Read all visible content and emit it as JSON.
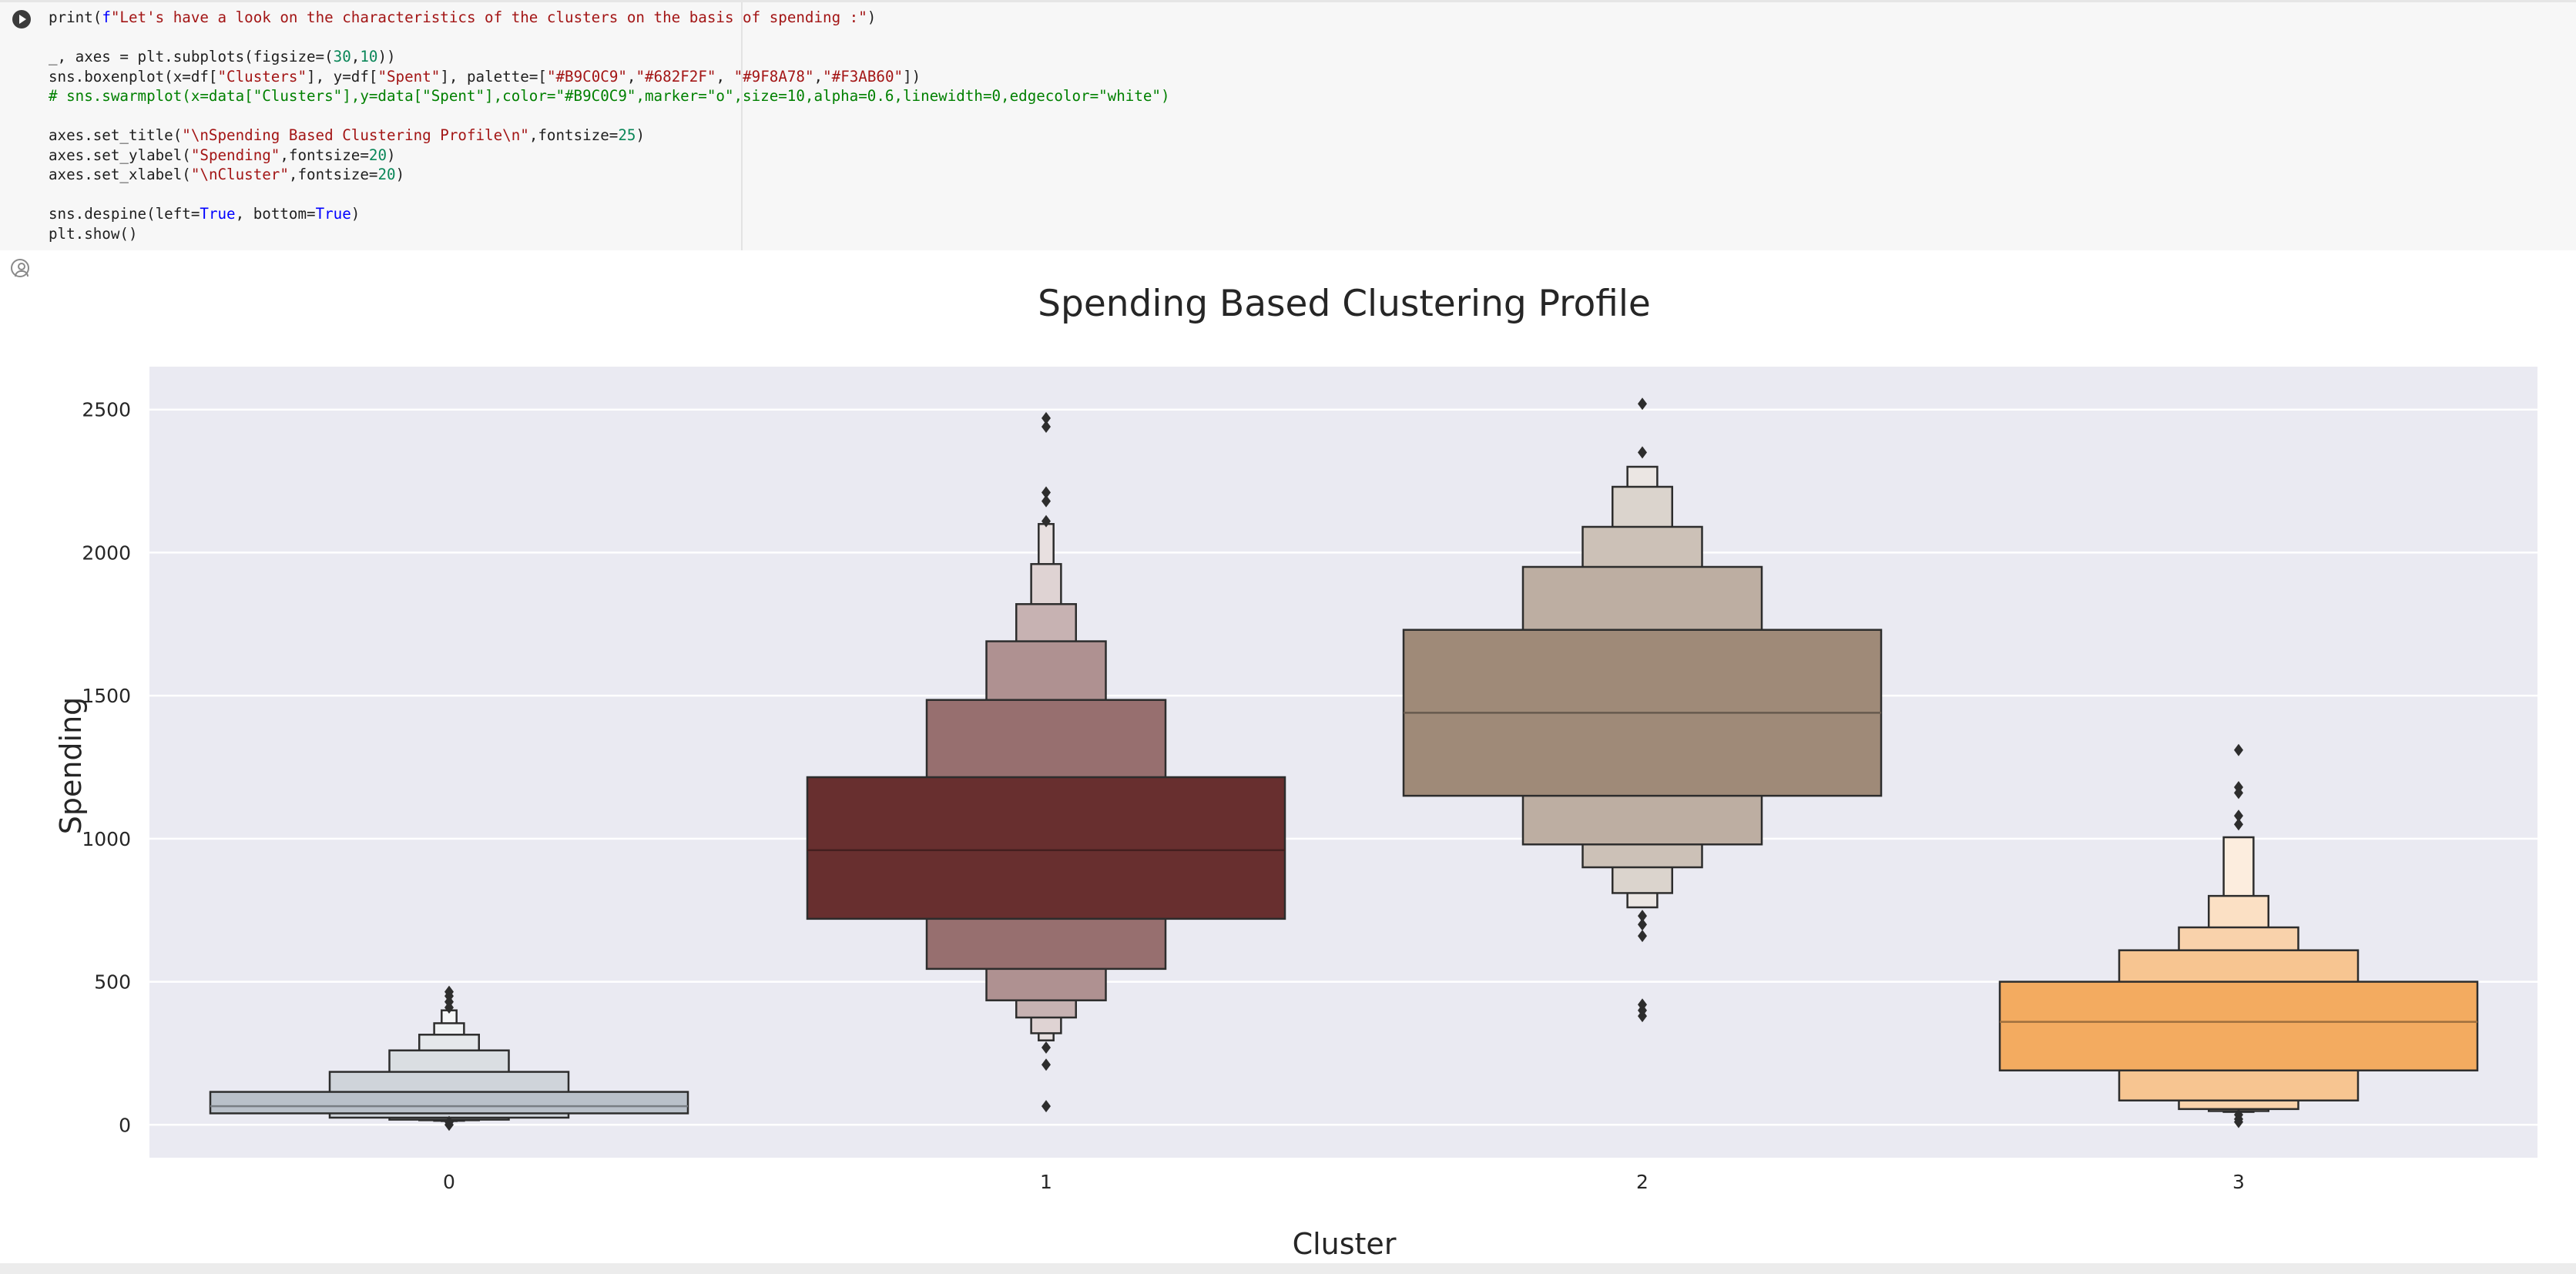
{
  "code_cell": {
    "lines": [
      "print(f\"Let's have a look on the characteristics of the clusters on the basis of spending :\")",
      "",
      "_, axes = plt.subplots(figsize=(30,10))",
      "sns.boxenplot(x=df[\"Clusters\"], y=df[\"Spent\"], palette=[\"#B9C0C9\",\"#682F2F\", \"#9F8A78\",\"#F3AB60\"])",
      "# sns.swarmplot(x=data[\"Clusters\"],y=data[\"Spent\"],color=\"#B9C0C9\",marker=\"o\",size=10,alpha=0.6,linewidth=0,edgecolor=\"white\")",
      "",
      "axes.set_title(\"\\nSpending Based Clustering Profile\\n\",fontsize=25)",
      "axes.set_ylabel(\"Spending\",fontsize=20)",
      "axes.set_xlabel(\"\\nCluster\",fontsize=20)",
      "",
      "sns.despine(left=True, bottom=True)",
      "plt.show()"
    ]
  },
  "icons": {
    "run": "play-icon",
    "output": "output-user-icon"
  },
  "chart_data": {
    "type": "boxen",
    "title": "Spending Based Clustering Profile",
    "xlabel": "Cluster",
    "ylabel": "Spending",
    "categories": [
      "0",
      "1",
      "2",
      "3"
    ],
    "yticks": [
      "0",
      "500",
      "1000",
      "1500",
      "2000",
      "2500"
    ],
    "ylim": [
      -115,
      2650
    ],
    "grid": true,
    "colors": [
      "#B9C0C9",
      "#682F2F",
      "#9F8A78",
      "#F3AB60"
    ],
    "medians": [
      65,
      960,
      1440,
      360
    ],
    "boxes": [
      [
        [
          40,
          115
        ],
        [
          25,
          185
        ],
        [
          18,
          260
        ],
        [
          16,
          315
        ],
        [
          14,
          355
        ],
        [
          13,
          400
        ]
      ],
      [
        [
          720,
          1215
        ],
        [
          545,
          1485
        ],
        [
          435,
          1690
        ],
        [
          375,
          1820
        ],
        [
          320,
          1960
        ],
        [
          295,
          2100
        ]
      ],
      [
        [
          1150,
          1730
        ],
        [
          980,
          1950
        ],
        [
          900,
          2090
        ],
        [
          810,
          2230
        ],
        [
          760,
          2300
        ]
      ],
      [
        [
          190,
          500
        ],
        [
          85,
          610
        ],
        [
          55,
          690
        ],
        [
          48,
          800
        ],
        [
          45,
          1005
        ]
      ]
    ],
    "outliers": [
      [
        0,
        10,
        465,
        450,
        430,
        410
      ],
      [
        65,
        210,
        270,
        2110,
        2180,
        2210,
        2440,
        2470
      ],
      [
        380,
        400,
        420,
        660,
        700,
        730,
        2350,
        2520
      ],
      [
        10,
        20,
        35,
        1050,
        1080,
        1160,
        1180,
        1310
      ]
    ]
  }
}
